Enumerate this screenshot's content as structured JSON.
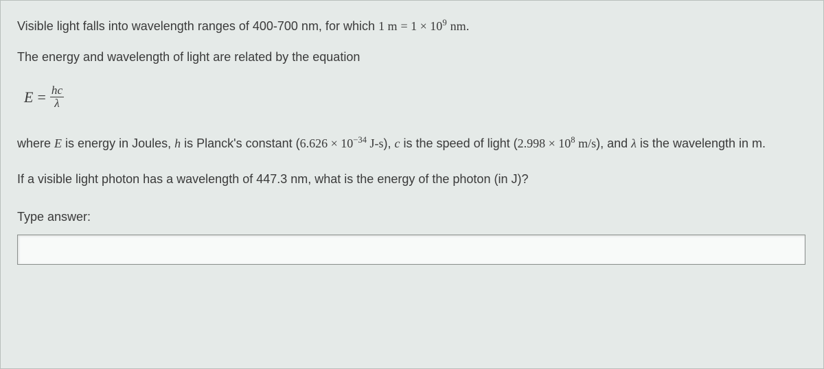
{
  "background_color": "#e5eae8",
  "text_color": "#3a3a3a",
  "intro": {
    "text_before": "Visible light falls into wavelength ranges of 400-700 nm, for which ",
    "equation_lhs": "1 m",
    "equation_rhs_base": "1 × 10",
    "equation_rhs_exp": "9",
    "equation_rhs_unit": " nm",
    "text_after": "."
  },
  "line2": "The energy and wavelength of light are related by the equation",
  "equation": {
    "lhs": "E",
    "eq": "=",
    "num": "hc",
    "den": "λ"
  },
  "explain": {
    "t1": "where ",
    "E": "E",
    "t2": " is energy in Joules, ",
    "h": "h",
    "t3": " is Planck's constant (",
    "planck_base": "6.626 × 10",
    "planck_exp": "−34",
    "planck_unit": " J-s",
    "t4": "), ",
    "c": "c",
    "t5": " is the speed of light (",
    "c_base": "2.998 × 10",
    "c_exp": "8",
    "c_unit": " m/s",
    "t6": "), and ",
    "lambda": "λ",
    "t7": " is the wavelength in m."
  },
  "question": "If a visible light photon has a wavelength of 447.3 nm, what is the energy of the photon (in J)?",
  "answer_label": "Type answer:",
  "answer_value": ""
}
